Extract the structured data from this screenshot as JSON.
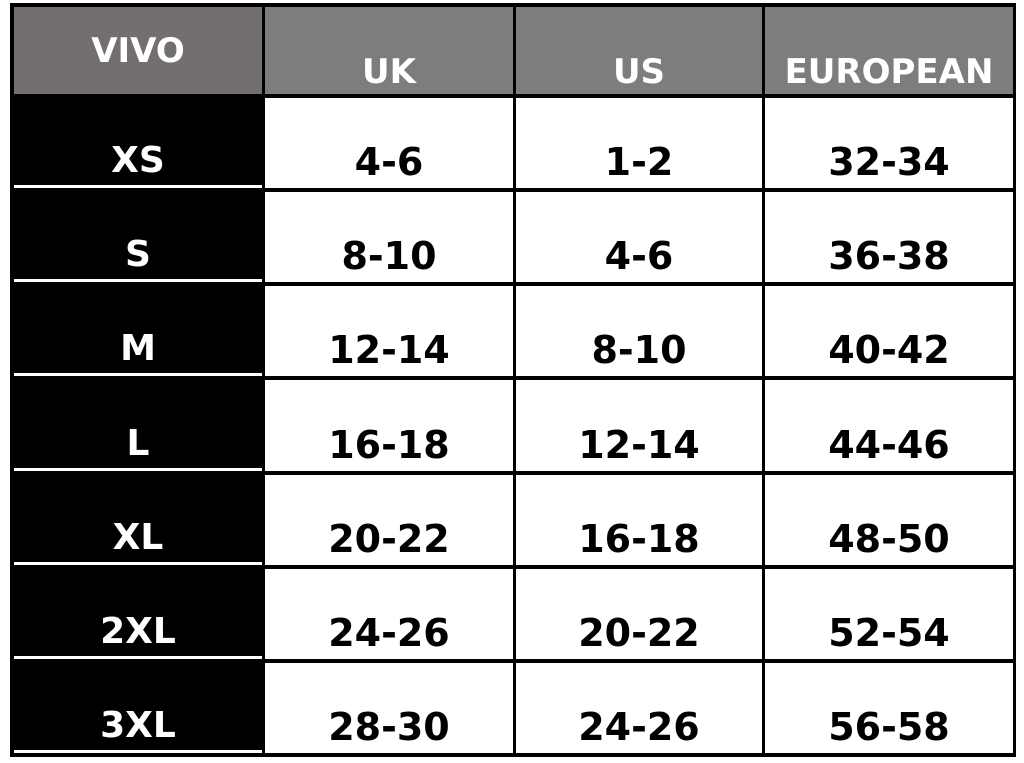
{
  "table": {
    "headers": [
      "VIVO",
      "UK",
      "US",
      "EUROPEAN"
    ],
    "rows": [
      {
        "size": "XS",
        "uk": "4-6",
        "us": "1-2",
        "european": "32-34"
      },
      {
        "size": "S",
        "uk": "8-10",
        "us": "4-6",
        "european": "36-38"
      },
      {
        "size": "M",
        "uk": "12-14",
        "us": "8-10",
        "european": "40-42"
      },
      {
        "size": "L",
        "uk": "16-18",
        "us": "12-14",
        "european": "44-46"
      },
      {
        "size": "XL",
        "uk": "20-22",
        "us": "16-18",
        "european": "48-50"
      },
      {
        "size": "2XL",
        "uk": "24-26",
        "us": "20-22",
        "european": "52-54"
      },
      {
        "size": "3XL",
        "uk": "28-30",
        "us": "24-26",
        "european": "56-58"
      }
    ]
  },
  "colors": {
    "header_first": "#736f6e",
    "header": "#7d7d7d",
    "size_column": "#000000",
    "cells": "#ffffff"
  }
}
